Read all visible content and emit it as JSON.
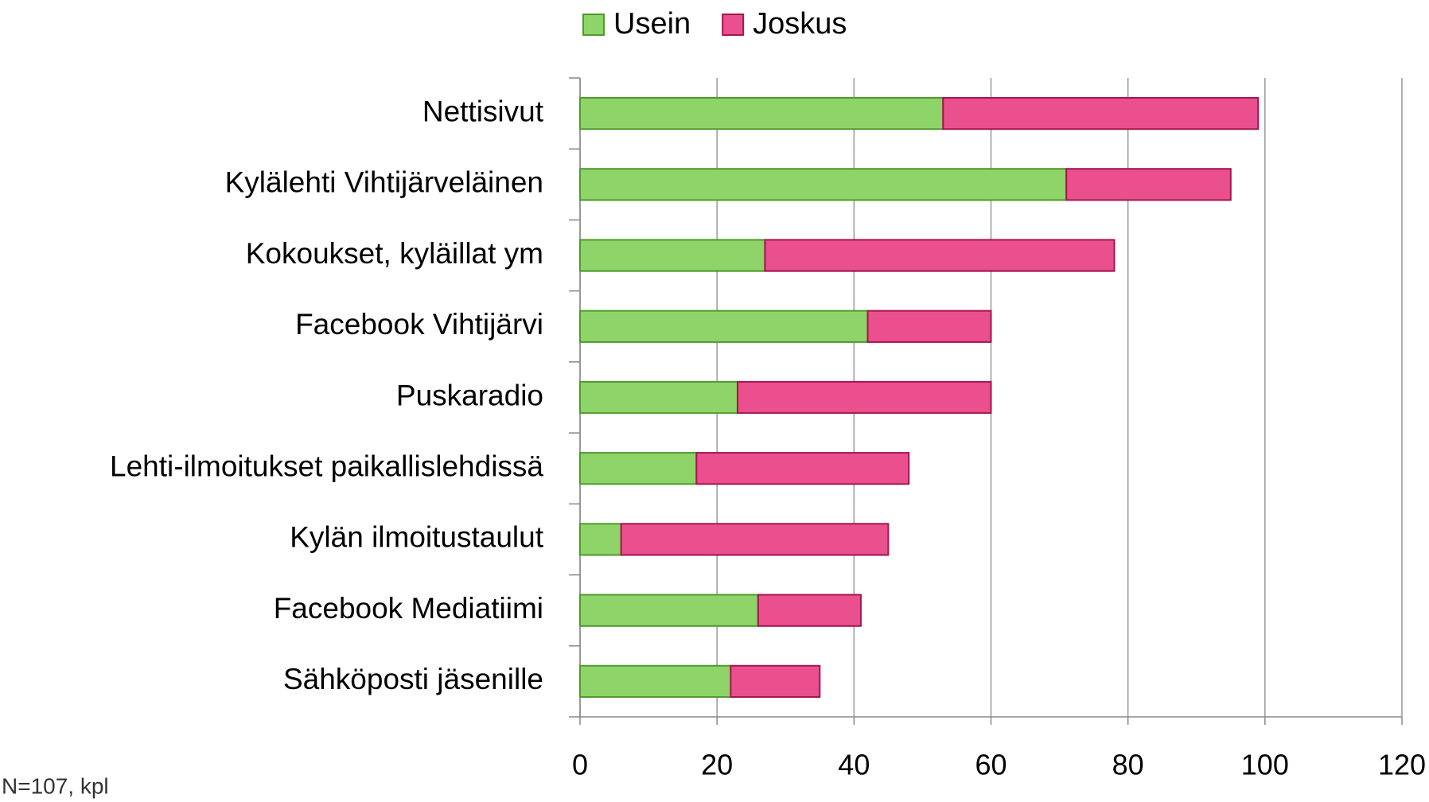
{
  "chart_data": {
    "type": "stacked_barh",
    "categories": [
      "Nettisivut",
      "Kylälehti Vihtijärveläinen",
      "Kokoukset, kyläillat ym",
      "Facebook Vihtijärvi",
      "Puskaradio",
      "Lehti-ilmoitukset paikallislehdissä",
      "Kylän ilmoitustaulut",
      "Facebook Mediatiimi",
      "Sähköposti jäsenille"
    ],
    "series": [
      {
        "name": "Usein",
        "color": "#8ed468",
        "values": [
          53,
          71,
          27,
          42,
          23,
          17,
          6,
          26,
          22
        ]
      },
      {
        "name": "Joskus",
        "color": "#ea4f8e",
        "values": [
          46,
          24,
          51,
          18,
          37,
          31,
          39,
          15,
          13
        ]
      }
    ],
    "xlim": [
      0,
      120
    ],
    "xticks": [
      0,
      20,
      40,
      60,
      80,
      100,
      120
    ],
    "grid": true,
    "note": "N=107, kpl"
  }
}
